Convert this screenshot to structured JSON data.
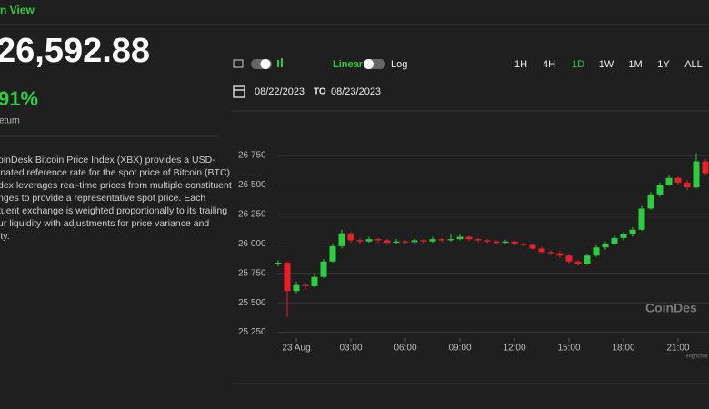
{
  "header": {
    "view": "n View",
    "price": "26,592.88",
    "change": "91%",
    "change_label": "eturn"
  },
  "description": [
    "oinDesk Bitcoin Price Index (XBX) provides a USD-",
    "inated reference rate for the spot price of Bitcoin (BTC).",
    "dex leverages real-time prices from multiple constituent",
    "nges to provide a representative spot price. Each",
    "tuent exchange is weighted proportionally to its trailing",
    "ur liquidity with adjustments for price variance and",
    "ity."
  ],
  "controls": {
    "scale_linear": "Linear",
    "scale_log": "Log",
    "ranges": [
      "1H",
      "4H",
      "1D",
      "1W",
      "1M",
      "1Y",
      "ALL"
    ],
    "active_range": "1D",
    "date_from": "08/22/2023",
    "date_sep": "TO",
    "date_to": "08/23/2023"
  },
  "chart_data": {
    "type": "candlestick",
    "watermark": "CoinDes",
    "credit": "Highchar",
    "up_color": "#2ecc40",
    "down_color": "#e8202a",
    "grid": true,
    "xlim": [
      -1.05,
      22.7
    ],
    "ylim": [
      25200,
      26990
    ],
    "xticks": [
      {
        "value": 0,
        "label": "23 Aug"
      },
      {
        "value": 3,
        "label": "03:00"
      },
      {
        "value": 6,
        "label": "06:00"
      },
      {
        "value": 9,
        "label": "09:00"
      },
      {
        "value": 12,
        "label": "12:00"
      },
      {
        "value": 15,
        "label": "15:00"
      },
      {
        "value": 18,
        "label": "18:00"
      },
      {
        "value": 21,
        "label": "21:00"
      }
    ],
    "yticks": [
      {
        "value": 26750,
        "label": "26 750"
      },
      {
        "value": 26500,
        "label": "26 500"
      },
      {
        "value": 26250,
        "label": "26 250"
      },
      {
        "value": 26000,
        "label": "26 000"
      },
      {
        "value": 25750,
        "label": "25 750"
      },
      {
        "value": 25500,
        "label": "25 500"
      },
      {
        "value": 25250,
        "label": "25 250"
      }
    ],
    "series": [
      {
        "x": [
          -1,
          -0.5,
          0,
          0.5,
          1,
          1.5,
          2,
          2.5,
          3,
          3.5,
          4,
          4.5,
          5,
          5.5,
          6,
          6.5,
          7,
          7.5,
          8,
          8.5,
          9,
          9.5,
          10,
          10.5,
          11,
          11.5,
          12,
          12.5,
          13,
          13.5,
          14,
          14.5,
          15,
          15.5,
          16,
          16.5,
          17,
          17.5,
          18,
          18.5,
          19,
          19.5,
          20,
          20.5,
          21,
          21.5,
          22,
          22.5
        ],
        "open": [
          25830,
          25840,
          25600,
          25650,
          25640,
          25720,
          25850,
          25980,
          26090,
          26030,
          26020,
          26040,
          26030,
          26010,
          26020,
          26015,
          26030,
          26020,
          26040,
          26030,
          26040,
          26060,
          26040,
          26030,
          26020,
          26010,
          26020,
          26000,
          25990,
          25960,
          25930,
          25920,
          25900,
          25850,
          25830,
          25900,
          25970,
          26000,
          26050,
          26080,
          26120,
          26300,
          26420,
          26500,
          26560,
          26520,
          26480,
          26700
        ],
        "high": [
          25860,
          25850,
          25680,
          25670,
          25740,
          25870,
          26000,
          26120,
          26100,
          26050,
          26060,
          26050,
          26040,
          26040,
          26030,
          26045,
          26040,
          26060,
          26050,
          26080,
          26080,
          26070,
          26050,
          26040,
          26030,
          26035,
          26030,
          26015,
          26000,
          25975,
          25945,
          25935,
          25910,
          25860,
          25910,
          25990,
          26020,
          26070,
          26100,
          26140,
          26320,
          26440,
          26520,
          26580,
          26570,
          26540,
          26770,
          26720
        ],
        "low": [
          25810,
          25380,
          25580,
          25610,
          25630,
          25710,
          25840,
          25960,
          26010,
          26000,
          26010,
          26010,
          25990,
          26000,
          26000,
          26005,
          26005,
          26010,
          26015,
          26020,
          26030,
          26025,
          26015,
          26005,
          25995,
          26000,
          25985,
          25975,
          25950,
          25920,
          25905,
          25880,
          25830,
          25810,
          25820,
          25890,
          25950,
          25990,
          26030,
          26060,
          26110,
          26290,
          26400,
          26490,
          26500,
          26460,
          26470,
          26580
        ],
        "close": [
          25840,
          25600,
          25650,
          25640,
          25720,
          25850,
          25980,
          26090,
          26030,
          26020,
          26040,
          26030,
          26010,
          26020,
          26015,
          26030,
          26020,
          26040,
          26030,
          26040,
          26060,
          26040,
          26030,
          26020,
          26010,
          26020,
          26000,
          25990,
          25960,
          25930,
          25920,
          25900,
          25850,
          25830,
          25900,
          25970,
          26000,
          26050,
          26080,
          26120,
          26300,
          26420,
          26500,
          26560,
          26520,
          26480,
          26700,
          26600
        ]
      }
    ]
  }
}
